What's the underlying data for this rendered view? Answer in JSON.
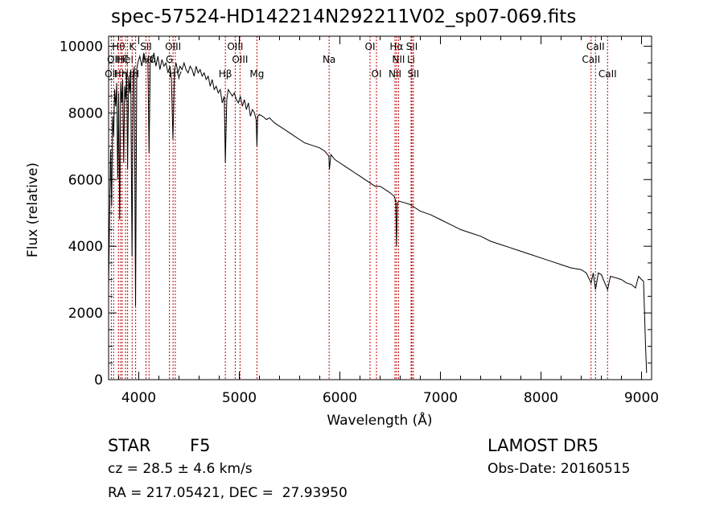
{
  "chart_data": {
    "type": "line",
    "title": "spec-57524-HD142214N292211V02_sp07-069.fits",
    "xlabel": "Wavelength (Å)",
    "ylabel": "Flux (relative)",
    "xlim": [
      3700,
      9100
    ],
    "ylim": [
      0,
      10300
    ],
    "x_ticks": [
      4000,
      5000,
      6000,
      7000,
      8000,
      9000
    ],
    "y_ticks": [
      0,
      2000,
      4000,
      6000,
      8000,
      10000
    ],
    "series": [
      {
        "x": [
          3700,
          3708,
          3720,
          3730,
          3740,
          3750,
          3760,
          3770,
          3780,
          3790,
          3800,
          3810,
          3820,
          3830,
          3840,
          3850,
          3860,
          3870,
          3880,
          3889,
          3900,
          3910,
          3920,
          3933,
          3945,
          3955,
          3968,
          3980,
          3990,
          4000,
          4010,
          4030,
          4050,
          4070,
          4090,
          4102,
          4115,
          4130,
          4150,
          4170,
          4190,
          4210,
          4230,
          4250,
          4270,
          4290,
          4310,
          4325,
          4340,
          4355,
          4370,
          4390,
          4410,
          4430,
          4450,
          4470,
          4490,
          4510,
          4530,
          4550,
          4570,
          4590,
          4610,
          4630,
          4650,
          4670,
          4690,
          4710,
          4730,
          4750,
          4770,
          4790,
          4810,
          4830,
          4850,
          4861,
          4875,
          4890,
          4910,
          4930,
          4950,
          4970,
          4990,
          5010,
          5030,
          5050,
          5070,
          5090,
          5110,
          5130,
          5150,
          5167,
          5175,
          5183,
          5200,
          5230,
          5270,
          5300,
          5350,
          5400,
          5450,
          5500,
          5550,
          5600,
          5650,
          5700,
          5750,
          5800,
          5850,
          5890,
          5896,
          5910,
          5950,
          6000,
          6050,
          6100,
          6150,
          6200,
          6250,
          6300,
          6350,
          6400,
          6450,
          6500,
          6540,
          6555,
          6563,
          6572,
          6590,
          6650,
          6700,
          6750,
          6800,
          6900,
          7000,
          7100,
          7200,
          7300,
          7400,
          7500,
          7600,
          7700,
          7800,
          7900,
          8000,
          8100,
          8200,
          8300,
          8400,
          8450,
          8498,
          8520,
          8542,
          8570,
          8600,
          8662,
          8690,
          8750,
          8800,
          8850,
          8900,
          8940,
          8970,
          9000,
          9020,
          9040,
          9050
        ],
        "y": [
          2800,
          4500,
          6900,
          5200,
          7900,
          7300,
          8700,
          8200,
          8900,
          6000,
          8600,
          4800,
          8900,
          8300,
          9000,
          6500,
          8800,
          8400,
          9200,
          6300,
          9100,
          8600,
          9300,
          3700,
          9100,
          9400,
          2200,
          9300,
          9500,
          9600,
          9700,
          9400,
          9800,
          9500,
          9600,
          6800,
          9700,
          9500,
          9800,
          9400,
          9700,
          9300,
          9600,
          9400,
          9500,
          9200,
          9400,
          9000,
          7200,
          9300,
          9500,
          9200,
          9400,
          9300,
          9500,
          9300,
          9200,
          9400,
          9300,
          9100,
          9400,
          9200,
          9300,
          9100,
          9200,
          9000,
          9100,
          8800,
          9000,
          8700,
          8800,
          8600,
          8700,
          8300,
          8500,
          6500,
          8400,
          8700,
          8600,
          8500,
          8600,
          8400,
          8300,
          8500,
          8200,
          8400,
          8100,
          8300,
          7900,
          8100,
          8000,
          7800,
          7000,
          7900,
          7950,
          7900,
          7800,
          7850,
          7700,
          7600,
          7500,
          7400,
          7300,
          7200,
          7100,
          7050,
          7000,
          6950,
          6850,
          6700,
          6300,
          6750,
          6600,
          6500,
          6400,
          6300,
          6200,
          6100,
          6000,
          5900,
          5800,
          5800,
          5700,
          5600,
          5500,
          5350,
          4000,
          5300,
          5350,
          5300,
          5250,
          5150,
          5050,
          4950,
          4800,
          4650,
          4500,
          4400,
          4300,
          4150,
          4050,
          3950,
          3850,
          3750,
          3650,
          3550,
          3450,
          3350,
          3300,
          3200,
          2900,
          3200,
          2700,
          3200,
          3150,
          2700,
          3100,
          3050,
          3000,
          2900,
          2850,
          2750,
          3100,
          3000,
          2950,
          1000,
          200
        ]
      }
    ],
    "lines": [
      {
        "x": 3727,
        "label": "OII",
        "row": 3
      },
      {
        "x": 3750,
        "label": "OII",
        "row": 2
      },
      {
        "x": 3798,
        "label": "Hθ",
        "row": 1
      },
      {
        "x": 3820,
        "label": "Hη",
        "row": 3
      },
      {
        "x": 3835,
        "label": "Hζ",
        "row": 2
      },
      {
        "x": 3869,
        "label": "HeI",
        "row": 2
      },
      {
        "x": 3889,
        "label": "Hε",
        "row": 3
      },
      {
        "x": 3934,
        "label": "K",
        "row": 1
      },
      {
        "x": 3969,
        "label": "H",
        "row": 3
      },
      {
        "x": 4072,
        "label": "SII",
        "row": 1
      },
      {
        "x": 4102,
        "label": "Hδ",
        "row": 2
      },
      {
        "x": 4305,
        "label": "G",
        "row": 2
      },
      {
        "x": 4341,
        "label": "OIII",
        "row": 1
      },
      {
        "x": 4363,
        "label": "Hγ",
        "row": 3
      },
      {
        "x": 4861,
        "label": "Hβ",
        "row": 3
      },
      {
        "x": 4959,
        "label": "OIII",
        "row": 1
      },
      {
        "x": 5007,
        "label": "OIII",
        "row": 2
      },
      {
        "x": 5175,
        "label": "Mg",
        "row": 3
      },
      {
        "x": 5893,
        "label": "Na",
        "row": 2
      },
      {
        "x": 6300,
        "label": "OI",
        "row": 1
      },
      {
        "x": 6364,
        "label": "OI",
        "row": 3
      },
      {
        "x": 6548,
        "label": "NII",
        "row": 3
      },
      {
        "x": 6563,
        "label": "Hα",
        "row": 1
      },
      {
        "x": 6583,
        "label": "NII",
        "row": 2
      },
      {
        "x": 6708,
        "label": "Li",
        "row": 2
      },
      {
        "x": 6716,
        "label": "SII",
        "row": 1
      },
      {
        "x": 6731,
        "label": "SII",
        "row": 3
      },
      {
        "x": 8498,
        "label": "CaII",
        "row": 2
      },
      {
        "x": 8542,
        "label": "CaII",
        "row": 1
      },
      {
        "x": 8662,
        "label": "CaII",
        "row": 3
      }
    ]
  },
  "info": {
    "obj_class": "STAR",
    "subclass": "F5",
    "survey": "LAMOST DR5",
    "cz": "cz = 28.5 ± 4.6 km/s",
    "obs_date": "Obs-Date: 20160515",
    "coords": "RA = 217.05421, DEC =  27.93950"
  }
}
